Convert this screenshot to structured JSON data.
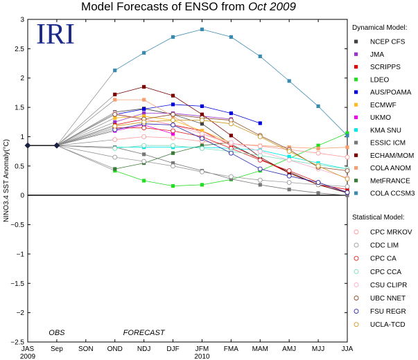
{
  "chart_data": {
    "type": "line",
    "title_main": "Model Forecasts of ENSO from ",
    "title_italic": "Oct 2009",
    "logo": "IRI",
    "ylabel": "NINO3.4 SST Anomaly(°C)",
    "ylim": [
      -2.5,
      3
    ],
    "yticks": [
      "−2.5",
      "−2",
      "−1.5",
      "−1",
      "−0.5",
      "0",
      "0.5",
      "1",
      "1.5",
      "2",
      "2.5",
      "3"
    ],
    "categories": [
      "JAS",
      "Sep",
      "SON",
      "OND",
      "NDJ",
      "DJF",
      "JFM",
      "FMA",
      "MAM",
      "AMJ",
      "MJJ",
      "JJA"
    ],
    "year_labels": [
      {
        "text": "2009",
        "at": 0
      },
      {
        "text": "2010",
        "at": 6
      }
    ],
    "annotations": [
      {
        "text": "OBS",
        "at": 1
      },
      {
        "text": "FORECAST",
        "at": 4
      }
    ],
    "observed": [
      0.85,
      0.85
    ],
    "dynamical_heading": "Dynamical Model:",
    "statistical_heading": "Statistical Model:",
    "dynamical": [
      {
        "name": "NCEP CFS",
        "color": "#404040",
        "values": [
          1.42,
          1.48,
          1.38,
          1.22,
          0.87,
          0.62,
          0.4,
          0.18,
          0.04
        ]
      },
      {
        "name": "JMA",
        "color": "#9933cc",
        "values": [
          1.25,
          1.4,
          1.4,
          1.35,
          1.3
        ]
      },
      {
        "name": "SCRIPPS",
        "color": "#e00000",
        "values": [
          1.2,
          1.3,
          1.2,
          1.1,
          0.85,
          0.62,
          0.38,
          0.18,
          0.1
        ]
      },
      {
        "name": "LDEO",
        "color": "#22dd22",
        "values": [
          0.42,
          0.25,
          0.16,
          0.18,
          0.27,
          0.42,
          0.63,
          0.85,
          1.06
        ]
      },
      {
        "name": "AUS/POAMA",
        "color": "#0000dd",
        "values": [
          1.38,
          1.47,
          1.55,
          1.52,
          1.4,
          1.23
        ]
      },
      {
        "name": "ECMWF",
        "color": "#ffbb22",
        "values": [
          1.32,
          1.35,
          1.28,
          1.1,
          0.9
        ]
      },
      {
        "name": "UKMO",
        "color": "#ee00ee",
        "values": [
          1.1,
          1.2,
          1.05
        ]
      },
      {
        "name": "KMA SNU",
        "color": "#00e8e8",
        "values": [
          0.82,
          0.82,
          0.82,
          0.82,
          0.8,
          0.77,
          0.66,
          0.55,
          0.45
        ]
      },
      {
        "name": "ESSIC ICM",
        "color": "#777777",
        "values": [
          0.82,
          0.7,
          0.55,
          0.42,
          0.28,
          0.18,
          0.1,
          0.04,
          0.0
        ]
      },
      {
        "name": "ECHAM/MOM",
        "color": "#7a0000",
        "values": [
          1.72,
          1.85,
          1.7,
          1.38,
          1.02,
          0.65,
          0.38,
          0.18,
          0.05
        ]
      },
      {
        "name": "COLA ANOM",
        "color": "#f5a070",
        "values": [
          1.63,
          1.63,
          1.35,
          1.05,
          0.88,
          0.85,
          0.82,
          0.8,
          0.82
        ]
      },
      {
        "name": "MetFRANCE",
        "color": "#3a7a3a",
        "values": [
          0.45,
          0.55,
          0.72,
          0.85,
          0.9
        ]
      },
      {
        "name": "COLA CCSM3",
        "color": "#3a8ab0",
        "values": [
          2.13,
          2.43,
          2.7,
          2.83,
          2.7,
          2.37,
          1.95,
          1.52,
          1.02
        ]
      }
    ],
    "statistical": [
      {
        "name": "CPC MRKOV",
        "color": "#ff9999",
        "values": [
          0.95,
          1.0,
          0.98,
          0.92,
          0.88,
          0.84,
          0.78,
          0.72,
          0.65
        ]
      },
      {
        "name": "CDC LIM",
        "color": "#999999",
        "values": [
          0.65,
          0.58,
          0.5,
          0.4,
          0.32,
          0.26,
          0.22,
          0.18,
          0.15
        ]
      },
      {
        "name": "CPC CA",
        "color": "#dd2222",
        "values": [
          1.15,
          1.15,
          1.1,
          1.0,
          0.8,
          0.6,
          0.42,
          0.22,
          0.05
        ]
      },
      {
        "name": "CPC CCA",
        "color": "#77ddbb",
        "values": [
          0.8,
          0.85,
          0.85,
          0.8,
          0.75,
          0.68,
          0.6,
          0.52,
          0.45
        ]
      },
      {
        "name": "CSU CLIPR",
        "color": "#ffaacc",
        "values": [
          1.4,
          1.3,
          1.2,
          1.05,
          0.9,
          0.75,
          0.6,
          0.45,
          0.3
        ]
      },
      {
        "name": "UBC NNET",
        "color": "#8a4a2a",
        "values": [
          1.38,
          1.3,
          1.38,
          1.32,
          1.28,
          1.02,
          0.78,
          0.48,
          0.42
        ]
      },
      {
        "name": "FSU REGR",
        "color": "#2222aa",
        "values": [
          1.12,
          1.22,
          1.2,
          0.97,
          0.72,
          0.45,
          0.33,
          0.22,
          0.05
        ]
      },
      {
        "name": "UCLA-TCD",
        "color": "#cc9922",
        "values": [
          1.18,
          1.25,
          1.28,
          1.28,
          1.22,
          1.0,
          0.75,
          0.5,
          0.28
        ]
      }
    ]
  }
}
